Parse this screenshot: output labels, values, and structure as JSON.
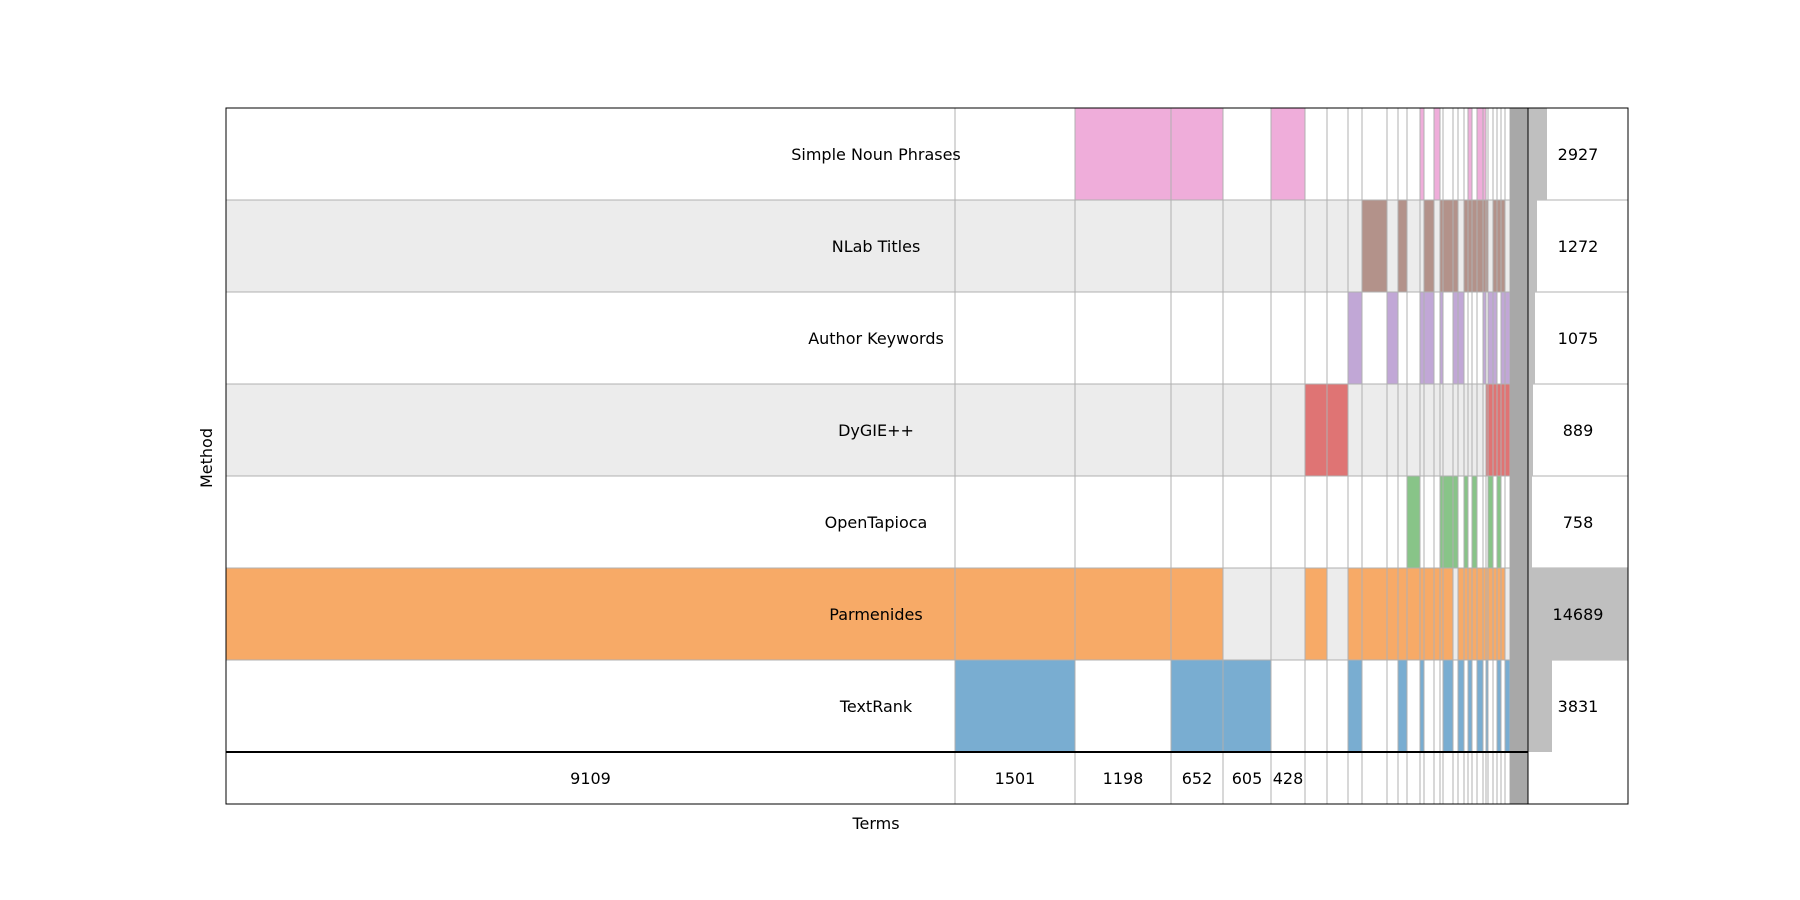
{
  "chart_data": {
    "type": "upset-mosaic",
    "xlabel": "Terms",
    "ylabel": "Method",
    "methods": [
      {
        "name": "Simple Noun Phrases",
        "total": "2927",
        "color": "#efadda"
      },
      {
        "name": "NLab Titles",
        "total": "1272",
        "color": "#b3928a"
      },
      {
        "name": "Author Keywords",
        "total": "1075",
        "color": "#c1a7d6"
      },
      {
        "name": "DyGIE++",
        "total": "889",
        "color": "#df7474"
      },
      {
        "name": "OpenTapioca",
        "total": "758",
        "color": "#88c488"
      },
      {
        "name": "Parmenides",
        "total": "14689",
        "color": "#f7aa67"
      },
      {
        "name": "TextRank",
        "total": "3831",
        "color": "#79add1"
      }
    ],
    "intersections": [
      {
        "count": "9109",
        "members": [
          "Parmenides"
        ]
      },
      {
        "count": "1501",
        "members": [
          "Parmenides",
          "TextRank"
        ]
      },
      {
        "count": "1198",
        "members": [
          "Simple Noun Phrases",
          "Parmenides"
        ]
      },
      {
        "count": "652",
        "members": [
          "Simple Noun Phrases",
          "Parmenides",
          "TextRank"
        ]
      },
      {
        "count": "605",
        "members": [
          "TextRank"
        ]
      },
      {
        "count": "428",
        "members": [
          "Simple Noun Phrases"
        ]
      },
      {
        "count": "",
        "members": [
          "DyGIE++",
          "Parmenides"
        ]
      },
      {
        "count": "",
        "members": [
          "DyGIE++"
        ]
      },
      {
        "count": "",
        "members": [
          "Author Keywords",
          "Parmenides",
          "TextRank"
        ]
      },
      {
        "count": "",
        "members": [
          "NLab Titles",
          "Parmenides"
        ]
      },
      {
        "count": "",
        "members": [
          "Author Keywords",
          "Parmenides"
        ]
      },
      {
        "count": "",
        "members": [
          "NLab Titles",
          "Parmenides",
          "TextRank"
        ]
      },
      {
        "count": "",
        "members": [
          "OpenTapioca",
          "Parmenides"
        ]
      },
      {
        "count": "",
        "members": [
          "Simple Noun Phrases",
          "Author Keywords",
          "Parmenides",
          "TextRank"
        ]
      },
      {
        "count": "",
        "members": [
          "NLab Titles",
          "Author Keywords",
          "Parmenides"
        ]
      },
      {
        "count": "",
        "members": [
          "Simple Noun Phrases",
          "Parmenides"
        ]
      },
      {
        "count": "",
        "members": [
          "NLab Titles",
          "Author Keywords",
          "OpenTapioca",
          "Parmenides"
        ]
      },
      {
        "count": "",
        "members": [
          "NLab Titles",
          "OpenTapioca",
          "Parmenides",
          "TextRank"
        ]
      },
      {
        "count": "",
        "members": [
          "NLab Titles",
          "Author Keywords",
          "OpenTapioca"
        ]
      },
      {
        "count": "",
        "members": [
          "Author Keywords",
          "Parmenides",
          "TextRank"
        ]
      },
      {
        "count": "",
        "members": [
          "NLab Titles",
          "OpenTapioca",
          "Parmenides"
        ]
      },
      {
        "count": "",
        "members": [
          "Simple Noun Phrases",
          "NLab Titles",
          "Parmenides",
          "TextRank"
        ]
      },
      {
        "count": "",
        "members": [
          "NLab Titles",
          "OpenTapioca",
          "Parmenides"
        ]
      },
      {
        "count": "",
        "members": [
          "Simple Noun Phrases",
          "NLab Titles",
          "Parmenides",
          "TextRank"
        ]
      },
      {
        "count": "",
        "members": [
          "Simple Noun Phrases",
          "NLab Titles",
          "Author Keywords",
          "Parmenides"
        ]
      },
      {
        "count": "",
        "members": [
          "NLab Titles",
          "DyGIE++",
          "Parmenides",
          "TextRank"
        ]
      },
      {
        "count": "",
        "members": [
          "Author Keywords",
          "OpenTapioca",
          "DyGIE++",
          "Parmenides"
        ]
      },
      {
        "count": "",
        "members": [
          "NLab Titles",
          "Author Keywords",
          "DyGIE++",
          "Parmenides"
        ]
      },
      {
        "count": "",
        "members": [
          "NLab Titles",
          "OpenTapioca",
          "DyGIE++",
          "Parmenides",
          "TextRank"
        ]
      },
      {
        "count": "",
        "members": [
          "NLab Titles",
          "Author Keywords",
          "DyGIE++",
          "Parmenides"
        ]
      },
      {
        "count": "",
        "members": [
          "Author Keywords",
          "DyGIE++",
          "TextRank"
        ]
      }
    ]
  }
}
